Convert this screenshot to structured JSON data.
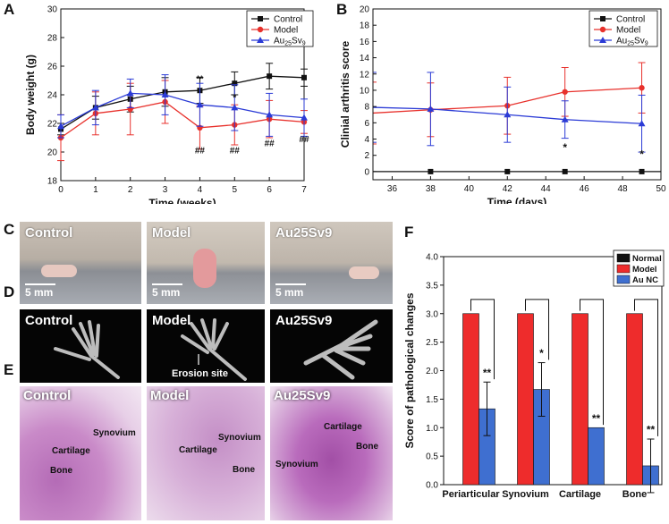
{
  "panels": {
    "a": "A",
    "b": "B",
    "c": "C",
    "d": "D",
    "e": "E",
    "f": "F"
  },
  "chart_data": [
    {
      "id": "A",
      "type": "line",
      "xlabel": "Time (weeks)",
      "ylabel": "Body weight (g)",
      "xlim": [
        0,
        7
      ],
      "ylim": [
        18,
        30
      ],
      "xticks": [
        0,
        1,
        2,
        3,
        4,
        5,
        6,
        7
      ],
      "yticks": [
        18,
        20,
        22,
        24,
        26,
        28,
        30
      ],
      "legend_position": "top-right",
      "series": [
        {
          "name": "Control",
          "color": "#111111",
          "marker": "square",
          "x": [
            0,
            1,
            2,
            3,
            4,
            5,
            6,
            7
          ],
          "y": [
            21.6,
            23.1,
            23.7,
            24.2,
            24.3,
            24.8,
            25.3,
            25.2
          ],
          "err": [
            0.4,
            0.8,
            0.9,
            1.0,
            0.9,
            0.8,
            0.9,
            0.6
          ]
        },
        {
          "name": "Model",
          "color": "#e8312c",
          "marker": "circle",
          "x": [
            0,
            1,
            2,
            3,
            4,
            5,
            6,
            7
          ],
          "y": [
            21.0,
            22.7,
            23.0,
            23.5,
            21.7,
            21.9,
            22.3,
            22.1
          ],
          "err": [
            1.6,
            1.5,
            1.8,
            1.5,
            1.5,
            1.4,
            1.3,
            0.8
          ]
        },
        {
          "name": "Au25Sv9",
          "color": "#2b3bd6",
          "marker": "triangle",
          "x": [
            0,
            1,
            2,
            3,
            4,
            5,
            6,
            7
          ],
          "y": [
            21.8,
            23.1,
            24.1,
            24.0,
            23.3,
            23.1,
            22.6,
            22.4
          ],
          "err": [
            0.8,
            1.2,
            1.0,
            1.4,
            1.5,
            1.6,
            1.5,
            1.3
          ]
        }
      ],
      "annotations": [
        {
          "text": "**",
          "x": 4,
          "y": 24.9
        },
        {
          "text": "*",
          "x": 5,
          "y": 23.6
        },
        {
          "text": "##",
          "x": 4,
          "y": 19.9
        },
        {
          "text": "##",
          "x": 5,
          "y": 19.9
        },
        {
          "text": "##",
          "x": 6,
          "y": 20.4
        },
        {
          "text": "##",
          "x": 7,
          "y": 20.7
        }
      ]
    },
    {
      "id": "B",
      "type": "line",
      "xlabel": "Time (days)",
      "ylabel": "Clinial arthritis score",
      "xlim": [
        35,
        50
      ],
      "ylim": [
        -1,
        20
      ],
      "xticks": [
        36,
        38,
        40,
        42,
        44,
        46,
        48,
        50
      ],
      "yticks": [
        0,
        2,
        4,
        6,
        8,
        10,
        12,
        14,
        16,
        18,
        20
      ],
      "legend_position": "top-right",
      "series": [
        {
          "name": "Control",
          "color": "#111111",
          "marker": "square",
          "x": [
            35,
            38,
            42,
            45,
            49,
            50
          ],
          "y": [
            0,
            0,
            0,
            0,
            0,
            0
          ],
          "err": [
            0,
            0,
            0,
            0,
            0,
            0
          ]
        },
        {
          "name": "Model",
          "color": "#e8312c",
          "marker": "circle",
          "x": [
            35,
            38,
            42,
            45,
            49
          ],
          "y": [
            7.2,
            7.6,
            8.1,
            9.8,
            10.3
          ],
          "err": [
            3.8,
            3.3,
            3.5,
            3.0,
            3.1
          ]
        },
        {
          "name": "Au25Sv9",
          "color": "#2b3bd6",
          "marker": "triangle",
          "x": [
            35,
            38,
            42,
            45,
            49
          ],
          "y": [
            7.9,
            7.7,
            7.0,
            6.4,
            5.9
          ],
          "err": [
            4.3,
            4.5,
            3.4,
            2.3,
            3.5
          ]
        }
      ],
      "annotations": [
        {
          "text": "*",
          "x": 45,
          "y": 2.5
        },
        {
          "text": "*",
          "x": 49,
          "y": 1.7
        }
      ]
    },
    {
      "id": "F",
      "type": "bar",
      "ylabel": "Score of pathological changes",
      "ylim": [
        0,
        4.0
      ],
      "yticks": [
        "0.0",
        "0.5",
        "1.0",
        "1.5",
        "2.0",
        "2.5",
        "3.0",
        "3.5",
        "4.0"
      ],
      "categories": [
        "Periarticular",
        "Synovium",
        "Cartilage",
        "Bone"
      ],
      "legend_position": "top-right",
      "series": [
        {
          "name": "Normal",
          "color": "#111111",
          "values": [
            0,
            0,
            0,
            0
          ],
          "err": [
            0,
            0,
            0,
            0
          ]
        },
        {
          "name": "Model",
          "color": "#ee2c2c",
          "values": [
            3,
            3,
            3,
            3
          ],
          "err": [
            0,
            0,
            0,
            0
          ]
        },
        {
          "name": "Au NC",
          "color": "#3f6fd0",
          "values": [
            1.33,
            1.67,
            1.0,
            0.33
          ],
          "err": [
            0.47,
            0.47,
            0,
            0.47
          ]
        }
      ],
      "annotations": [
        "**",
        "*",
        "**",
        "**"
      ]
    }
  ],
  "photos_c": {
    "labels": [
      "Control",
      "Model",
      "Au25Sv9"
    ],
    "scale": "5 mm"
  },
  "ct_d": {
    "labels": [
      "Control",
      "Model",
      "Au25Sv9"
    ],
    "callout": "Erosion site"
  },
  "histo_e": {
    "labels": [
      "Control",
      "Model",
      "Au25Sv9"
    ],
    "terms": {
      "synovium": "Synovium",
      "cartilage": "Cartilage",
      "bone": "Bone"
    }
  },
  "colors": {
    "control": "#111111",
    "model": "#e8312c",
    "treated": "#2b3bd6"
  }
}
